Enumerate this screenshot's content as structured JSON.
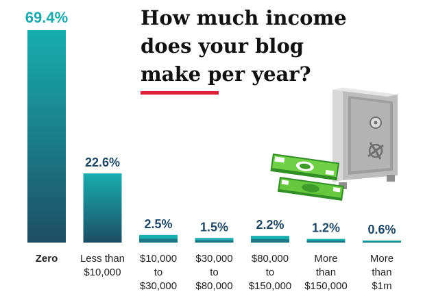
{
  "title_lines": [
    "How much income",
    "does your blog",
    "make per year?"
  ],
  "colors": {
    "bar_top": "#17aeb0",
    "bar_bottom": "#1e4e63",
    "value_label_first": "#1aa9ad",
    "value_label": "#1f4864",
    "category_label": "#222222",
    "title_rule": "#e0203a"
  },
  "illustration": {
    "icons": [
      "safe-icon",
      "money-stack-icon"
    ]
  },
  "chart_data": {
    "type": "bar",
    "title": "How much income does your blog make per year?",
    "categories": [
      [
        "Zero"
      ],
      [
        "Less than",
        "$10,000"
      ],
      [
        "$10,000",
        "to",
        "$30,000"
      ],
      [
        "$30,000",
        "to",
        "$80,000"
      ],
      [
        "$80,000",
        "to",
        "$150,000"
      ],
      [
        "More",
        "than",
        "$150,000"
      ],
      [
        "More",
        "than",
        "$1m"
      ]
    ],
    "values": [
      69.4,
      22.6,
      2.5,
      1.5,
      2.2,
      1.2,
      0.6
    ],
    "value_labels": [
      "69.4%",
      "22.6%",
      "2.5%",
      "1.5%",
      "2.2%",
      "1.2%",
      "0.6%"
    ],
    "unit": "%",
    "ylim": [
      0,
      69.4
    ],
    "grid": false,
    "xlabel": "",
    "ylabel": ""
  }
}
